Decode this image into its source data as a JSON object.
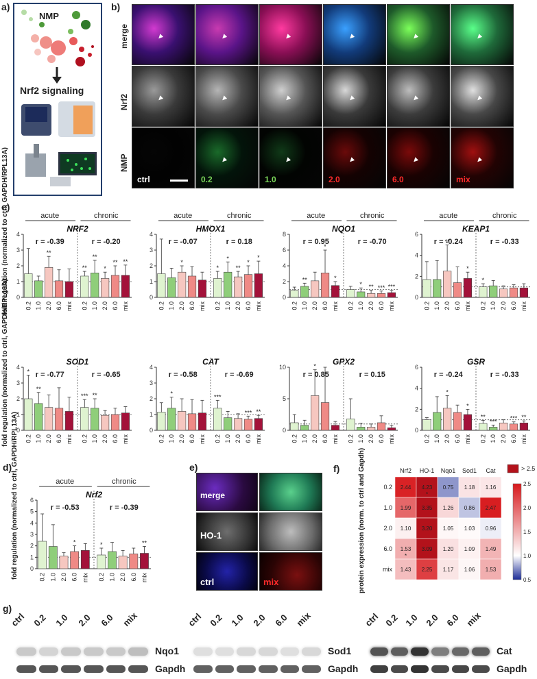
{
  "panels": {
    "a": {
      "label": "a)",
      "nmp": "NMP",
      "signal": "Nrf2 signaling"
    },
    "b": {
      "label": "b)",
      "rows": [
        "merge",
        "Nrf2",
        "NMP"
      ],
      "conditions": [
        {
          "text": "ctrl",
          "color": "#ffffff"
        },
        {
          "text": "0.2",
          "color": "#7bd75a"
        },
        {
          "text": "1.0",
          "color": "#7bd75a"
        },
        {
          "text": "2.0",
          "color": "#ff2b2b"
        },
        {
          "text": "6.0",
          "color": "#ff2b2b"
        },
        {
          "text": "mix",
          "color": "#ff2b2b"
        }
      ]
    },
    "c": {
      "label": "c)",
      "ylabel": "fold regulation (normalized to ctrl, GAPDH/RPL13A)",
      "acute": "acute",
      "chronic": "chronic"
    },
    "d": {
      "label": "d)",
      "ylabel": "fold regulation (normalized to ctrl, GAPDH/RPL13A)",
      "acute": "acute",
      "chronic": "chronic"
    },
    "e": {
      "label": "e)",
      "rows": [
        "merge",
        "HO-1"
      ],
      "ctrl": "ctrl",
      "mix": "mix"
    },
    "f": {
      "label": "f)",
      "ylabel": "protein expression (norm. to ctrl and Gapdh)",
      "legend_top": "> 2.5"
    },
    "g": {
      "label": "g)",
      "blots": [
        {
          "lanes": [
            "ctrl",
            "0.2",
            "1.0",
            "2.0",
            "6.0",
            "mix"
          ],
          "protein": "Nqo1",
          "loading": "Gapdh"
        },
        {
          "lanes": [
            "ctrl",
            "0.2",
            "1.0",
            "2.0",
            "6.0",
            "mix"
          ],
          "protein": "Sod1",
          "loading": "Gapdh"
        },
        {
          "lanes": [
            "ctrl",
            "0.2",
            "1.0",
            "2.0",
            "6.0",
            "mix"
          ],
          "protein": "Cat",
          "loading": "Gapdh"
        }
      ]
    }
  },
  "colors": {
    "light_green": "#dff3d0",
    "green": "#8fce7a",
    "pink": "#f6c7c0",
    "salmon": "#ef8a86",
    "crimson": "#a3123a"
  },
  "chart_data": [
    {
      "type": "bar",
      "title": "NRF2",
      "categories": [
        "0.2",
        "1.0",
        "2.0",
        "6.0",
        "mix",
        "0.2",
        "1.0",
        "2.0",
        "6.0",
        "mix"
      ],
      "values": [
        1.5,
        1.05,
        1.9,
        1.05,
        1.0,
        1.35,
        1.55,
        1.2,
        1.4,
        1.4
      ],
      "errors": [
        1.6,
        0.3,
        0.7,
        0.7,
        0.8,
        0.3,
        0.8,
        0.4,
        0.6,
        0.65
      ],
      "sig": [
        "",
        "",
        "**",
        "",
        "",
        "**",
        "**",
        "*",
        "**",
        "**"
      ],
      "r_acute": "r = -0.39",
      "r_chronic": "r = -0.20",
      "ylim": [
        0,
        4
      ],
      "yticks": [
        0,
        1,
        2,
        3,
        4
      ]
    },
    {
      "type": "bar",
      "title": "HMOX1",
      "categories": [
        "0.2",
        "1.0",
        "2.0",
        "6.0",
        "mix",
        "0.2",
        "1.0",
        "2.0",
        "6.0",
        "mix"
      ],
      "values": [
        1.5,
        1.25,
        1.6,
        1.35,
        1.1,
        1.2,
        1.6,
        1.3,
        1.45,
        1.5
      ],
      "errors": [
        2.2,
        0.6,
        0.4,
        0.6,
        0.5,
        0.45,
        0.65,
        0.35,
        0.55,
        0.8
      ],
      "sig": [
        "",
        "",
        "*",
        "",
        "",
        "*",
        "*",
        "**",
        "*",
        "*"
      ],
      "r_acute": "r = -0.07",
      "r_chronic": "r = 0.18",
      "ylim": [
        0,
        4
      ],
      "yticks": [
        0,
        1,
        2,
        3,
        4
      ]
    },
    {
      "type": "bar",
      "title": "NQO1",
      "categories": [
        "0.2",
        "1.0",
        "2.0",
        "6.0",
        "mix",
        "0.2",
        "1.0",
        "2.0",
        "6.0",
        "mix"
      ],
      "values": [
        0.9,
        1.4,
        2.1,
        3.1,
        1.5,
        1.0,
        0.7,
        0.5,
        0.5,
        0.6
      ],
      "errors": [
        0.4,
        0.4,
        1.1,
        2.9,
        0.5,
        0.4,
        0.5,
        0.4,
        0.3,
        0.3
      ],
      "sig": [
        "",
        "**",
        "",
        "*",
        "*",
        "",
        "*",
        "**",
        "***",
        "***"
      ],
      "r_acute": "r = 0.95",
      "r_chronic": "r = -0.70",
      "ylim": [
        0,
        8
      ],
      "yticks": [
        0,
        2,
        4,
        6,
        8
      ]
    },
    {
      "type": "bar",
      "title": "KEAP1",
      "categories": [
        "0.2",
        "1.0",
        "2.0",
        "6.0",
        "mix",
        "0.2",
        "1.0",
        "2.0",
        "6.0",
        "mix"
      ],
      "values": [
        1.7,
        1.7,
        2.5,
        1.4,
        1.8,
        1.0,
        1.1,
        0.8,
        0.9,
        0.9
      ],
      "errors": [
        1.7,
        1.8,
        2.5,
        1.5,
        0.6,
        0.3,
        0.5,
        0.3,
        0.3,
        0.4
      ],
      "sig": [
        "",
        "",
        "**",
        "",
        "*",
        "*",
        "",
        "",
        "",
        ""
      ],
      "r_acute": "r = -0.24",
      "r_chronic": "r = -0.33",
      "ylim": [
        0,
        6
      ],
      "yticks": [
        0,
        2,
        4,
        6
      ]
    },
    {
      "type": "bar",
      "title": "SOD1",
      "categories": [
        "0.2",
        "1.0",
        "2.0",
        "6.0",
        "mix",
        "0.2",
        "1.0",
        "2.0",
        "6.0",
        "mix"
      ],
      "values": [
        2.0,
        1.7,
        1.45,
        1.4,
        1.2,
        1.45,
        1.4,
        0.95,
        1.0,
        1.1
      ],
      "errors": [
        1.5,
        0.7,
        0.8,
        1.3,
        0.9,
        0.5,
        0.6,
        0.3,
        0.4,
        0.4
      ],
      "sig": [
        "*",
        "**",
        "",
        "",
        "",
        "***",
        "**",
        "",
        "",
        ""
      ],
      "r_acute": "r = -0.77",
      "r_chronic": "r = -0.65",
      "ylim": [
        0,
        4
      ],
      "yticks": [
        0,
        1,
        2,
        3,
        4
      ]
    },
    {
      "type": "bar",
      "title": "CAT",
      "categories": [
        "0.2",
        "1.0",
        "2.0",
        "6.0",
        "mix",
        "0.2",
        "1.0",
        "2.0",
        "6.0",
        "mix"
      ],
      "values": [
        1.15,
        1.4,
        1.2,
        1.05,
        1.1,
        1.4,
        0.8,
        0.75,
        0.7,
        0.75
      ],
      "errors": [
        0.6,
        0.7,
        0.8,
        0.9,
        0.8,
        0.5,
        0.4,
        0.3,
        0.2,
        0.2
      ],
      "sig": [
        "",
        "*",
        "",
        "",
        "",
        "***",
        "",
        "",
        "***",
        "**"
      ],
      "r_acute": "r = -0.58",
      "r_chronic": "r = -0.69",
      "ylim": [
        0,
        4
      ],
      "yticks": [
        0,
        1,
        2,
        3,
        4
      ]
    },
    {
      "type": "bar",
      "title": "GPX2",
      "categories": [
        "0.2",
        "1.0",
        "2.0",
        "6.0",
        "mix",
        "0.2",
        "1.0",
        "2.0",
        "6.0",
        "mix"
      ],
      "values": [
        1.2,
        0.8,
        5.5,
        4.4,
        0.8,
        1.8,
        0.5,
        0.5,
        1.2,
        0.4
      ],
      "errors": [
        1.3,
        0.8,
        4.1,
        6.8,
        0.6,
        3.2,
        0.6,
        0.5,
        1.1,
        0.4
      ],
      "sig": [
        "",
        "",
        "*",
        "",
        "",
        "",
        "",
        "",
        "",
        ""
      ],
      "r_acute": "r = 0.85",
      "r_chronic": "r = 0.15",
      "ylim": [
        0,
        10
      ],
      "yticks": [
        0,
        5,
        10
      ]
    },
    {
      "type": "bar",
      "title": "GSR",
      "categories": [
        "0.2",
        "1.0",
        "2.0",
        "6.0",
        "mix",
        "0.2",
        "1.0",
        "2.0",
        "6.0",
        "mix"
      ],
      "values": [
        1.0,
        1.7,
        2.1,
        1.7,
        1.5,
        0.65,
        0.3,
        0.7,
        0.6,
        0.7
      ],
      "errors": [
        0.2,
        1.5,
        1.2,
        0.7,
        0.5,
        0.3,
        0.2,
        0.3,
        0.2,
        0.2
      ],
      "sig": [
        "",
        "",
        "*",
        "",
        "*",
        "**",
        "***",
        "",
        "***",
        "**"
      ],
      "r_acute": "r = -0.24",
      "r_chronic": "r = -0.33",
      "ylim": [
        0,
        6
      ],
      "yticks": [
        0,
        2,
        4,
        6
      ]
    },
    {
      "type": "bar",
      "title": "Nrf2",
      "categories": [
        "0.2",
        "1.0",
        "2.0",
        "6.0",
        "mix",
        "0.2",
        "1.0",
        "2.0",
        "6.0",
        "mix"
      ],
      "values": [
        2.4,
        1.95,
        1.1,
        1.5,
        1.6,
        1.2,
        1.5,
        1.1,
        1.3,
        1.35
      ],
      "errors": [
        2.4,
        1.9,
        0.3,
        0.5,
        0.6,
        0.6,
        0.8,
        0.5,
        0.5,
        0.6
      ],
      "sig": [
        "",
        "",
        "",
        "*",
        "",
        "*",
        "",
        "",
        "",
        "**"
      ],
      "r_acute": "r = -0.53",
      "r_chronic": "r = -0.39",
      "ylim": [
        0,
        6
      ],
      "yticks": [
        0,
        1,
        2,
        3,
        4,
        5,
        6
      ]
    },
    {
      "type": "heatmap",
      "columns": [
        "Nrf2",
        "HO-1",
        "Nqo1",
        "Sod1",
        "Cat"
      ],
      "rows": [
        "0.2",
        "1.0",
        "2.0",
        "6.0",
        "mix"
      ],
      "values": [
        [
          2.44,
          4.23,
          0.75,
          1.18,
          1.16
        ],
        [
          1.99,
          3.35,
          1.26,
          0.86,
          2.47
        ],
        [
          1.1,
          3.2,
          1.05,
          1.03,
          0.96
        ],
        [
          1.53,
          3.09,
          1.2,
          1.09,
          1.49
        ],
        [
          1.43,
          2.25,
          1.17,
          1.06,
          1.53
        ]
      ],
      "stars": [
        [
          "",
          "*",
          "",
          "",
          ""
        ],
        [
          "",
          "",
          "",
          "",
          ""
        ],
        [
          "",
          "",
          "",
          "",
          ""
        ],
        [
          "*",
          "",
          "",
          "",
          ""
        ],
        [
          "",
          "",
          "",
          "",
          ""
        ]
      ],
      "scale": [
        0.5,
        1.0,
        1.5,
        2.0,
        2.5
      ],
      "scale_labels": [
        "0.5",
        "1.0",
        "1.5",
        "2.0",
        "2.5"
      ]
    }
  ]
}
